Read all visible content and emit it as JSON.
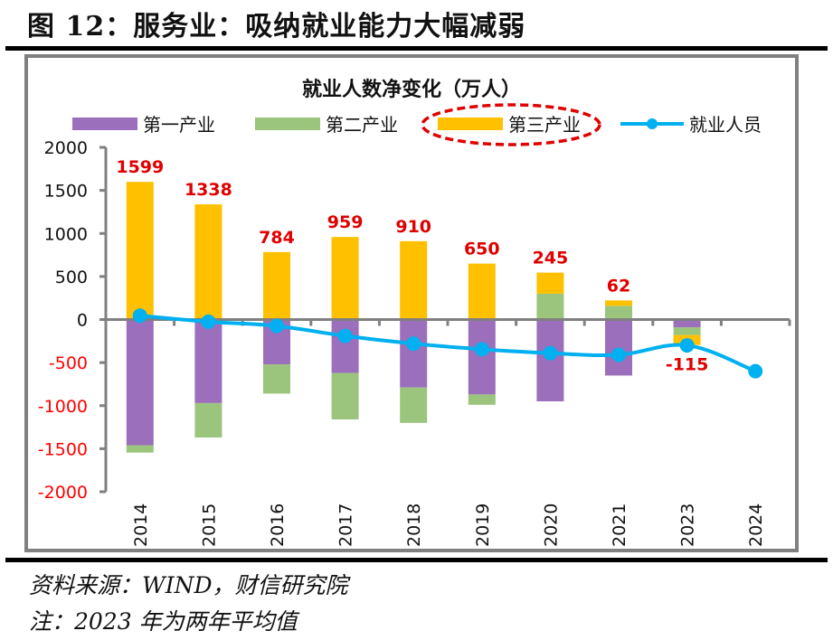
{
  "figure": {
    "title": "图 12：服务业：吸纳就业能力大幅减弱",
    "source": "资料来源：WIND，财信研究院",
    "note": "注：2023 年为两年平均值"
  },
  "colors": {
    "primary_industry": "#9B6FBB",
    "secondary_industry": "#9BC47D",
    "tertiary_industry": "#FFC000",
    "employment_line": "#00B0F0",
    "data_label": "#E00000",
    "negative_tick_label": "#FF0000",
    "axis": "#808080",
    "highlight_ellipse": "#E00000"
  },
  "chart_data": {
    "type": "bar",
    "stacked": true,
    "title": "就业人数净变化（万人）",
    "xlabel": "",
    "ylabel": "",
    "categories": [
      "2014",
      "2015",
      "2016",
      "2017",
      "2018",
      "2019",
      "2020",
      "2021",
      "2023",
      "2024"
    ],
    "ylim": [
      -2000,
      2000
    ],
    "yticks": [
      2000,
      1500,
      1000,
      500,
      0,
      -500,
      -1000,
      -1500,
      -2000
    ],
    "grid": false,
    "legend_position": "top",
    "series": [
      {
        "name": "第一产业",
        "kind": "bar",
        "values": [
          -1460,
          -970,
          -520,
          -620,
          -790,
          -870,
          -950,
          -650,
          -90,
          null
        ]
      },
      {
        "name": "第二产业",
        "kind": "bar",
        "values": [
          -85,
          -400,
          -340,
          -540,
          -410,
          -120,
          300,
          160,
          -90,
          null
        ]
      },
      {
        "name": "第三产业",
        "kind": "bar",
        "values": [
          1599,
          1338,
          784,
          959,
          910,
          650,
          245,
          62,
          -115,
          null
        ]
      },
      {
        "name": "就业人员",
        "kind": "line",
        "values": [
          45,
          -25,
          -75,
          -190,
          -280,
          -345,
          -390,
          -410,
          -300,
          -600
        ]
      }
    ],
    "data_labels": {
      "series": "第三产业",
      "values": [
        "1599",
        "1338",
        "784",
        "959",
        "910",
        "650",
        "245",
        "62",
        "-115",
        ""
      ]
    },
    "annotations": [
      {
        "type": "dashed-ellipse",
        "target": "legend:第三产业"
      }
    ]
  }
}
